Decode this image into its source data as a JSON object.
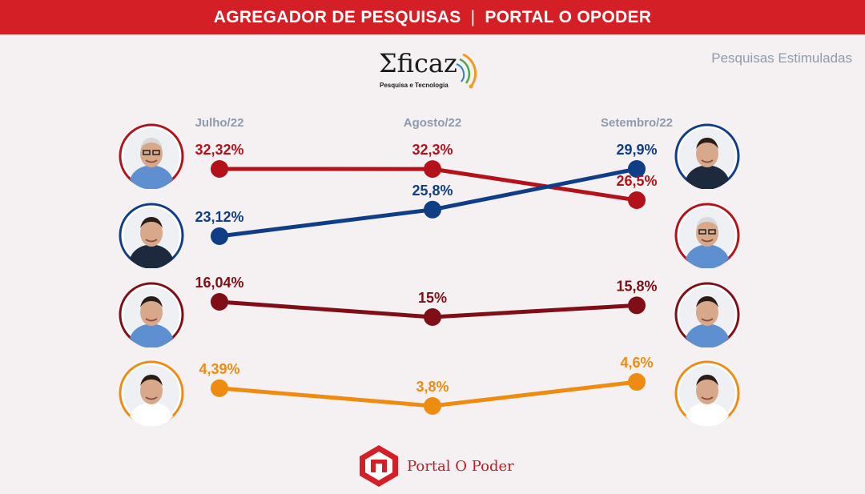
{
  "header": {
    "left": "AGREGADOR DE PESQUISAS",
    "separator": "|",
    "right": "PORTAL O OPODER"
  },
  "subtitle": "Pesquisas Estimuladas",
  "logo": {
    "word": "Σficaz",
    "tagline": "Pesquisa e Tecnologia"
  },
  "footer": {
    "brand": "Portal O Poder"
  },
  "colors": {
    "red": "#b3121b",
    "blue": "#0f3e86",
    "darkred": "#7f0e16",
    "orange": "#ee8c12",
    "header": "#d51f26"
  },
  "chart_data": {
    "type": "line",
    "categories": [
      "Julho/22",
      "Agosto/22",
      "Setembro/22"
    ],
    "ylim": [
      0,
      35
    ],
    "series": [
      {
        "key": "red",
        "color": "#b3121b",
        "values": [
          32.32,
          32.3,
          26.5
        ],
        "labels": [
          "32,32%",
          "32,3%",
          "26,5%"
        ]
      },
      {
        "key": "blue",
        "color": "#0f3e86",
        "values": [
          23.12,
          25.8,
          29.9
        ],
        "labels": [
          "23,12%",
          "25,8%",
          "29,9%"
        ]
      },
      {
        "key": "darkred",
        "color": "#7f0e16",
        "values": [
          16.04,
          15,
          15.8
        ],
        "labels": [
          "16,04%",
          "15%",
          "15,8%"
        ]
      },
      {
        "key": "orange",
        "color": "#ee8c12",
        "values": [
          4.39,
          3.8,
          4.6
        ],
        "labels": [
          "4,39%",
          "3,8%",
          "4,6%"
        ]
      }
    ]
  }
}
